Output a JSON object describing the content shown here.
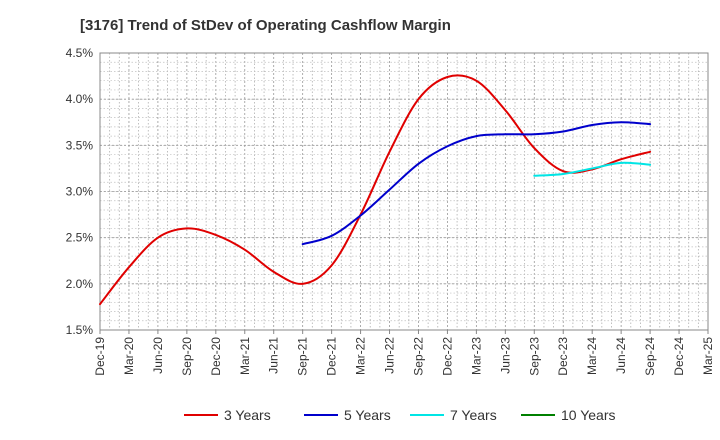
{
  "chart_data": {
    "type": "line",
    "title": "[3176]  Trend of StDev of Operating Cashflow Margin",
    "xlabel": "",
    "ylabel": "",
    "x_ticks": [
      "Dec-19",
      "Mar-20",
      "Jun-20",
      "Sep-20",
      "Dec-20",
      "Mar-21",
      "Jun-21",
      "Sep-21",
      "Dec-21",
      "Mar-22",
      "Jun-22",
      "Sep-22",
      "Dec-22",
      "Mar-23",
      "Jun-23",
      "Sep-23",
      "Dec-23",
      "Mar-24",
      "Jun-24",
      "Sep-24",
      "Dec-24",
      "Mar-25"
    ],
    "y_ticks": [
      "1.5%",
      "2.0%",
      "2.5%",
      "3.0%",
      "3.5%",
      "4.0%",
      "4.5%"
    ],
    "ylim": [
      1.5,
      4.5
    ],
    "y_unit": "%",
    "grid": true,
    "legend_position": "bottom",
    "series": [
      {
        "name": "3 Years",
        "color": "#e00000",
        "x": [
          "Dec-19",
          "Mar-20",
          "Jun-20",
          "Sep-20",
          "Dec-20",
          "Mar-21",
          "Jun-21",
          "Sep-21",
          "Dec-21",
          "Mar-22",
          "Jun-22",
          "Sep-22",
          "Dec-22",
          "Mar-23",
          "Jun-23",
          "Sep-23",
          "Dec-23",
          "Mar-24",
          "Jun-24",
          "Sep-24"
        ],
        "values": [
          1.78,
          2.18,
          2.5,
          2.6,
          2.53,
          2.37,
          2.13,
          2.0,
          2.2,
          2.75,
          3.43,
          4.0,
          4.24,
          4.2,
          3.88,
          3.47,
          3.22,
          3.24,
          3.35,
          3.43
        ]
      },
      {
        "name": "5 Years",
        "color": "#0000cc",
        "x": [
          "Sep-21",
          "Dec-21",
          "Mar-22",
          "Jun-22",
          "Sep-22",
          "Dec-22",
          "Mar-23",
          "Jun-23",
          "Sep-23",
          "Dec-23",
          "Mar-24",
          "Jun-24",
          "Sep-24"
        ],
        "values": [
          2.43,
          2.52,
          2.74,
          3.02,
          3.3,
          3.49,
          3.6,
          3.62,
          3.62,
          3.65,
          3.72,
          3.75,
          3.73
        ]
      },
      {
        "name": "7 Years",
        "color": "#00e5e5",
        "x": [
          "Sep-23",
          "Dec-23",
          "Mar-24",
          "Jun-24",
          "Sep-24"
        ],
        "values": [
          3.17,
          3.19,
          3.25,
          3.31,
          3.29
        ]
      },
      {
        "name": "10 Years",
        "color": "#008000",
        "x": [],
        "values": []
      }
    ]
  }
}
